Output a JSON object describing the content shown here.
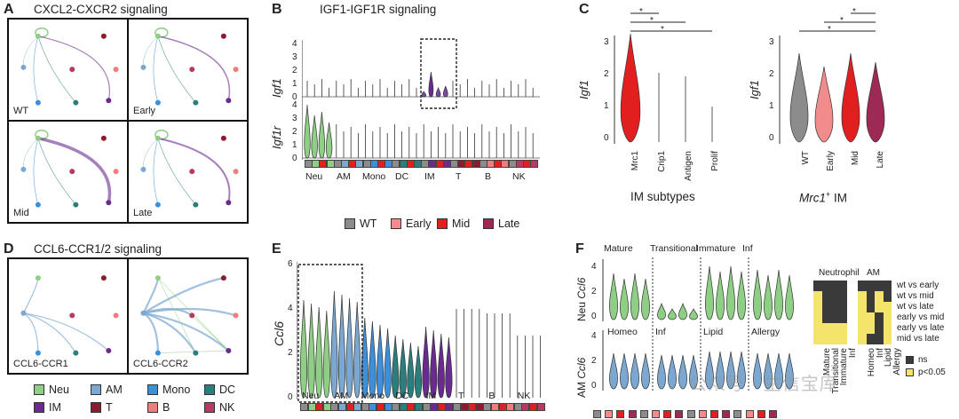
{
  "colors": {
    "neu": "#8fce85",
    "am": "#7ba7d1",
    "mono": "#3d8fd9",
    "dc": "#2a7f7d",
    "im": "#6a2b8f",
    "t": "#8b1b2e",
    "b": "#ef7d7d",
    "nk": "#b83a63",
    "wt": "#8c8c8c",
    "early": "#f28b8b",
    "mid": "#e11f1f",
    "late": "#9c2a55"
  },
  "panelA": {
    "label": "A",
    "title": "CXCL2-CXCR2 signaling",
    "cells": [
      "WT",
      "Early",
      "Mid",
      "Late"
    ]
  },
  "panelB": {
    "label": "B",
    "title": "IGF1-IGF1R signaling",
    "gene1": "Igf1",
    "gene2": "Igf1r",
    "ticks1": [
      "4",
      "3",
      "2",
      "1",
      "0"
    ],
    "ticks2": [
      "4",
      "3",
      "2",
      "1",
      "0"
    ],
    "categories": [
      "Neu",
      "AM",
      "Mono",
      "DC",
      "IM",
      "T",
      "B",
      "NK"
    ]
  },
  "legendTime": {
    "items": [
      "WT",
      "Early",
      "Mid",
      "Late"
    ]
  },
  "panelC": {
    "label": "C",
    "gene": "Igf1",
    "ticks": [
      "3",
      "2",
      "1",
      "0"
    ],
    "left": {
      "categories": [
        "Mrc1",
        "Crip1",
        "Antigen",
        "Prolif"
      ],
      "xlabel": "IM subtypes",
      "sig": [
        "*",
        "*",
        "*"
      ]
    },
    "right": {
      "categories": [
        "WT",
        "Early",
        "Mid",
        "Late"
      ],
      "xlabel_prefix": "Mrc1",
      "xlabel_sup": "+",
      "xlabel_suffix": " IM",
      "sig": [
        "*",
        "*",
        "*"
      ]
    }
  },
  "panelD": {
    "label": "D",
    "title": "CCL6-CCR1/2 signaling",
    "cells": [
      "CCL6-CCR1",
      "CCL6-CCR2"
    ]
  },
  "legendCell": {
    "items": [
      "Neu",
      "AM",
      "Mono",
      "DC",
      "IM",
      "T",
      "B",
      "NK"
    ]
  },
  "panelE": {
    "label": "E",
    "gene": "Ccl6",
    "ticks": [
      "6",
      "4",
      "2",
      "0"
    ],
    "categories": [
      "Neu",
      "AM",
      "Mono",
      "DC",
      "IM",
      "T",
      "B",
      "NK"
    ]
  },
  "panelF": {
    "label": "F",
    "ylabel_top_prefix": "Neu ",
    "ylabel_top_gene": "Ccl6",
    "ylabel_bot_prefix": "AM ",
    "ylabel_bot_gene": "Ccl6",
    "ticks_top": [
      "4",
      "2",
      "0"
    ],
    "ticks_bot": [
      "4",
      "2",
      "0"
    ],
    "top_groups": [
      "Mature",
      "Transitional",
      "Immature",
      "Inf"
    ],
    "bot_groups": [
      "Homeo",
      "Inf",
      "Lipid",
      "Allergy"
    ],
    "heatmap": {
      "title_left": "Neutrophil",
      "title_right": "AM",
      "rows": [
        "wt vs early",
        "wt vs mid",
        "wt vs late",
        "early vs mid",
        "early vs late",
        "mid vs late"
      ],
      "cols_left": [
        "Mature",
        "Transitional",
        "Immature",
        "Inf"
      ],
      "cols_right": [
        "Homeo",
        "Inf",
        "Lipid",
        "Allergy"
      ],
      "left": [
        [
          1,
          1,
          1,
          1
        ],
        [
          0,
          1,
          1,
          1
        ],
        [
          0,
          1,
          1,
          1
        ],
        [
          0,
          1,
          1,
          1
        ],
        [
          0,
          0,
          0,
          0
        ],
        [
          0,
          0,
          0,
          0
        ]
      ],
      "right": [
        [
          1,
          1,
          1,
          1
        ],
        [
          0,
          1,
          0,
          1
        ],
        [
          0,
          1,
          0,
          0
        ],
        [
          0,
          0,
          1,
          0
        ],
        [
          0,
          0,
          1,
          0
        ],
        [
          0,
          1,
          1,
          0
        ]
      ],
      "legend": [
        "ns",
        "p<0.05"
      ]
    }
  },
  "watermark": "公众号 · 生信宝库"
}
